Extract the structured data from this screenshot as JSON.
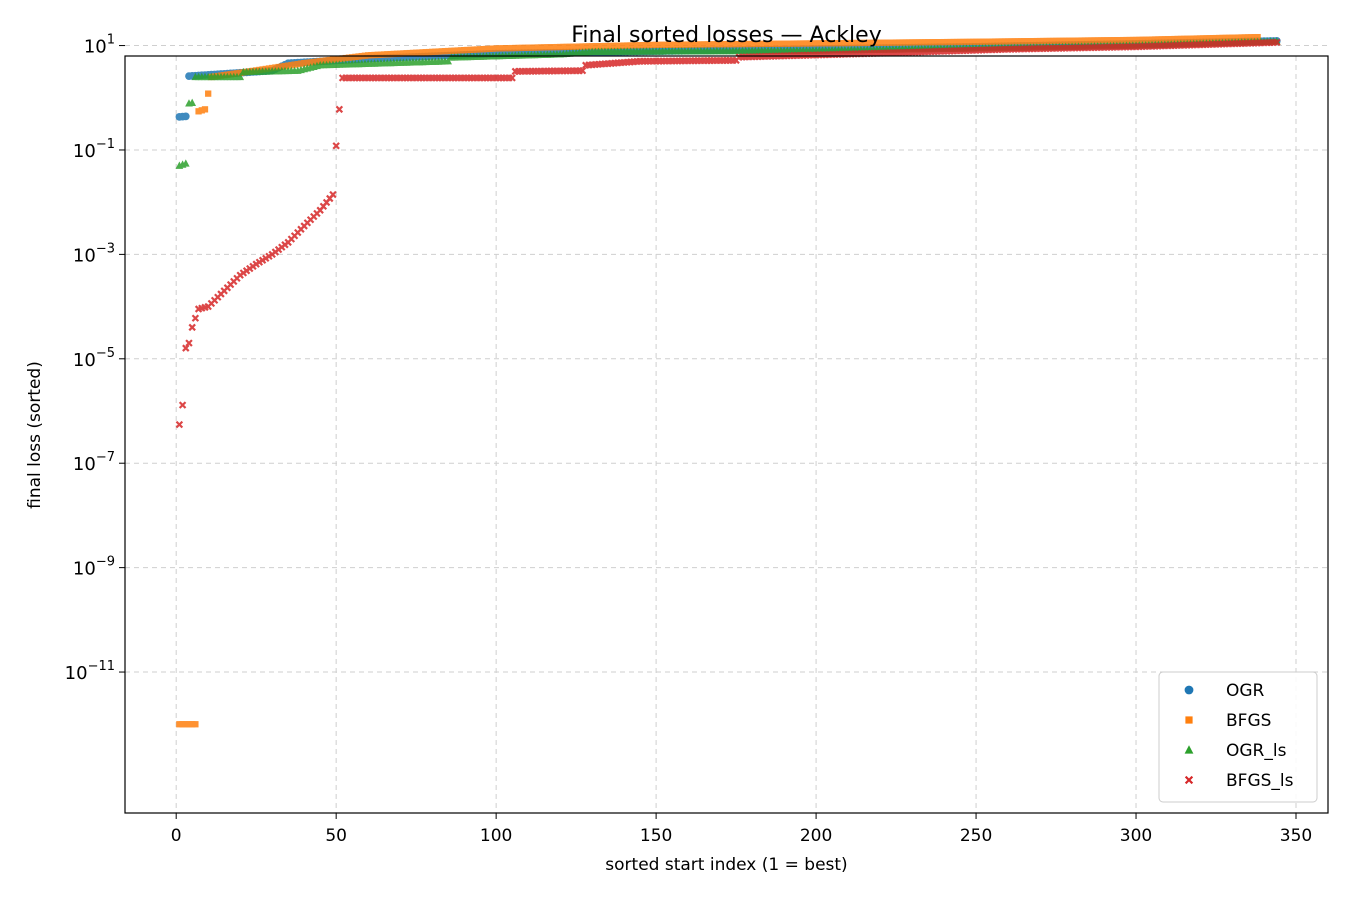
{
  "chart_data": {
    "type": "scatter",
    "title": "Final sorted losses — Ackley",
    "xlabel": "sorted start index (1 = best)",
    "ylabel": "final loss (sorted)",
    "yscale": "log",
    "xlim": [
      -16,
      360
    ],
    "ylim_log10": [
      -13.7,
      0.8
    ],
    "grid": true,
    "legend_placement": "bottom-right",
    "x_ticks": [
      0,
      50,
      100,
      150,
      200,
      250,
      300,
      350
    ],
    "x_tick_labels": [
      "0",
      "50",
      "100",
      "150",
      "200",
      "250",
      "300",
      "350"
    ],
    "y_ticks_log10": [
      1,
      -1,
      -3,
      -5,
      -7,
      -9,
      -11
    ],
    "y_tick_labels": [
      {
        "base": "10",
        "exp": "1"
      },
      {
        "base": "10",
        "exp": "−1"
      },
      {
        "base": "10",
        "exp": "−3"
      },
      {
        "base": "10",
        "exp": "−5"
      },
      {
        "base": "10",
        "exp": "−7"
      },
      {
        "base": "10",
        "exp": "−9"
      },
      {
        "base": "10",
        "exp": "−11"
      }
    ],
    "series": [
      {
        "name": "OGR",
        "color": "#1f77b4",
        "marker": "circle",
        "count": 344,
        "anchors": [
          [
            1,
            0.43
          ],
          [
            3,
            0.44
          ],
          [
            4,
            2.6
          ],
          [
            30,
            3.3
          ],
          [
            35,
            4.6
          ],
          [
            60,
            5.6
          ],
          [
            100,
            7.0
          ],
          [
            150,
            7.8
          ],
          [
            200,
            8.6
          ],
          [
            250,
            9.5
          ],
          [
            300,
            10.8
          ],
          [
            344,
            12.3
          ]
        ]
      },
      {
        "name": "BFGS",
        "color": "#ff7f0e",
        "marker": "square",
        "count": 338,
        "anchors": [
          [
            1,
            1e-12
          ],
          [
            6,
            1e-12
          ],
          [
            6,
            0.4
          ],
          [
            7,
            0.55
          ],
          [
            9,
            0.6
          ],
          [
            10,
            1.2
          ],
          [
            11,
            2.5
          ],
          [
            20,
            3.0
          ],
          [
            40,
            4.6
          ],
          [
            60,
            6.5
          ],
          [
            100,
            8.8
          ],
          [
            150,
            10.3
          ],
          [
            200,
            11.0
          ],
          [
            250,
            11.8
          ],
          [
            300,
            12.8
          ],
          [
            338,
            14.5
          ]
        ]
      },
      {
        "name": "OGR_ls",
        "color": "#2ca02c",
        "marker": "triangle",
        "count": 344,
        "anchors": [
          [
            1,
            0.05
          ],
          [
            3,
            0.055
          ],
          [
            4,
            0.78
          ],
          [
            5,
            0.8
          ],
          [
            6,
            2.5
          ],
          [
            20,
            2.5
          ],
          [
            21,
            3.1
          ],
          [
            38,
            3.3
          ],
          [
            45,
            4.2
          ],
          [
            85,
            5.0
          ],
          [
            86,
            5.9
          ],
          [
            120,
            6.8
          ],
          [
            130,
            7.6
          ],
          [
            200,
            8.0
          ],
          [
            260,
            9.0
          ],
          [
            300,
            10.0
          ],
          [
            344,
            12.0
          ]
        ]
      },
      {
        "name": "BFGS_ls",
        "color": "#d62728",
        "marker": "x",
        "count": 344,
        "anchors": [
          [
            1,
            5.5e-07
          ],
          [
            2,
            1.3e-06
          ],
          [
            3,
            1.6e-05
          ],
          [
            4,
            2e-05
          ],
          [
            5,
            4e-05
          ],
          [
            7,
            9e-05
          ],
          [
            10,
            0.0001
          ],
          [
            15,
            0.0002
          ],
          [
            20,
            0.0004
          ],
          [
            25,
            0.00065
          ],
          [
            30,
            0.001
          ],
          [
            35,
            0.0017
          ],
          [
            40,
            0.0035
          ],
          [
            45,
            0.007
          ],
          [
            49,
            0.014
          ],
          [
            50,
            0.12
          ],
          [
            51,
            0.6
          ],
          [
            52,
            2.4
          ],
          [
            105,
            2.4
          ],
          [
            106,
            3.2
          ],
          [
            127,
            3.3
          ],
          [
            128,
            4.2
          ],
          [
            145,
            5.0
          ],
          [
            175,
            5.2
          ],
          [
            176,
            6.0
          ],
          [
            215,
            7.0
          ],
          [
            260,
            8.5
          ],
          [
            300,
            9.5
          ],
          [
            344,
            11.5
          ]
        ]
      }
    ]
  }
}
